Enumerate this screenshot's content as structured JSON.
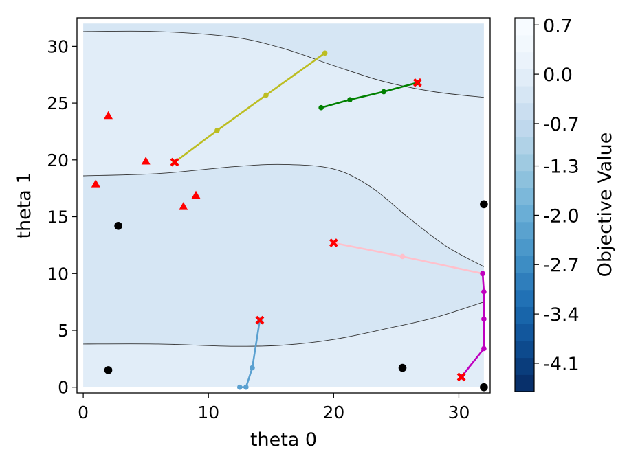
{
  "chart_data": {
    "type": "contour",
    "xlabel": "theta 0",
    "ylabel": "theta 1",
    "xlim": [
      -0.5,
      32.5
    ],
    "ylim": [
      -0.5,
      32.5
    ],
    "xticks": [
      0,
      10,
      20,
      30
    ],
    "yticks": [
      0,
      5,
      10,
      15,
      20,
      25,
      30
    ],
    "domain": {
      "x": [
        0,
        32
      ],
      "y": [
        0,
        32
      ]
    },
    "colorbar": {
      "label": "Objective Value",
      "range": [
        -4.5,
        0.8
      ],
      "tick_values": [
        0.7,
        0.0,
        -0.7,
        -1.3,
        -2.0,
        -2.7,
        -3.4,
        -4.1
      ],
      "tick_labels": [
        "0.7",
        "0.0",
        "-0.7",
        "-1.3",
        "-2.0",
        "-2.7",
        "-3.4",
        "-4.1"
      ],
      "colors_low_to_high": [
        "#08306b",
        "#0a3d7c",
        "#0d4a8d",
        "#12579d",
        "#1865aa",
        "#2171b5",
        "#2f7ebc",
        "#3d8dc4",
        "#4b98ca",
        "#5aa2cf",
        "#6aaed6",
        "#7cb8da",
        "#8dc1dd",
        "#9fcae1",
        "#b0d2e7",
        "#bfd8ed",
        "#cadef0",
        "#d6e6f4",
        "#e1edf8",
        "#ebf3fb",
        "#f2f8fd",
        "#f7fbff"
      ]
    },
    "bands": [
      {
        "fill": "#e1edf8"
      },
      {
        "fill": "#d6e6f4"
      },
      {
        "fill": "#e1edf8"
      },
      {
        "fill": "#d6e6f4"
      }
    ],
    "contour_lines": [
      {
        "name": "contour-line-top",
        "x": [
          0,
          6,
          12,
          16,
          20,
          24,
          28,
          32
        ],
        "y": [
          31.3,
          31.3,
          30.8,
          29.8,
          28.3,
          26.9,
          26.0,
          25.5
        ]
      },
      {
        "name": "contour-line-middle",
        "x": [
          0,
          6,
          12,
          16,
          20,
          23,
          26,
          29,
          32
        ],
        "y": [
          18.6,
          18.8,
          19.4,
          19.6,
          19.2,
          17.6,
          14.9,
          12.4,
          10.6
        ]
      },
      {
        "name": "contour-line-bottom",
        "x": [
          0,
          6,
          12,
          16,
          20,
          24,
          28,
          32
        ],
        "y": [
          3.8,
          3.8,
          3.6,
          3.7,
          4.2,
          5.1,
          6.1,
          7.5
        ]
      }
    ],
    "series": [
      {
        "name": "olive-path",
        "color": "#bcbd22",
        "x": [
          7.3,
          10.7,
          14.6,
          19.3
        ],
        "y": [
          19.8,
          22.6,
          25.7,
          29.4
        ],
        "start": [
          7.3,
          19.8
        ]
      },
      {
        "name": "green-path",
        "color": "#008000",
        "x": [
          19.0,
          21.3,
          24.0,
          26.7
        ],
        "y": [
          24.6,
          25.3,
          26.0,
          26.8
        ],
        "start": [
          26.7,
          26.8
        ]
      },
      {
        "name": "pink-path",
        "color": "#ffc0cb",
        "x": [
          20.0,
          25.5,
          31.9,
          32.0
        ],
        "y": [
          12.7,
          11.5,
          10.0,
          8.4
        ],
        "start": [
          20.0,
          12.7
        ]
      },
      {
        "name": "magenta-path",
        "color": "#bf00bf",
        "x": [
          30.2,
          32.0,
          32.0,
          32.0,
          31.9
        ],
        "y": [
          0.9,
          3.4,
          6.0,
          8.4,
          10.0
        ],
        "start": [
          30.2,
          0.9
        ]
      },
      {
        "name": "blue-path",
        "color": "#5aa0d0",
        "x": [
          14.1,
          13.5,
          13.0,
          12.5
        ],
        "y": [
          5.9,
          1.7,
          0.0,
          0.0
        ],
        "start": [
          14.1,
          5.9
        ]
      }
    ],
    "triangles": {
      "color": "#ff0000",
      "x": [
        2.0,
        1.0,
        5.0,
        8.0,
        9.0
      ],
      "y": [
        23.9,
        17.9,
        19.9,
        15.9,
        16.9
      ]
    },
    "black_points": {
      "color": "#000000",
      "x": [
        2.8,
        2.0,
        25.5,
        32.0,
        32.0
      ],
      "y": [
        14.2,
        1.5,
        1.7,
        16.1,
        0.0
      ]
    }
  }
}
